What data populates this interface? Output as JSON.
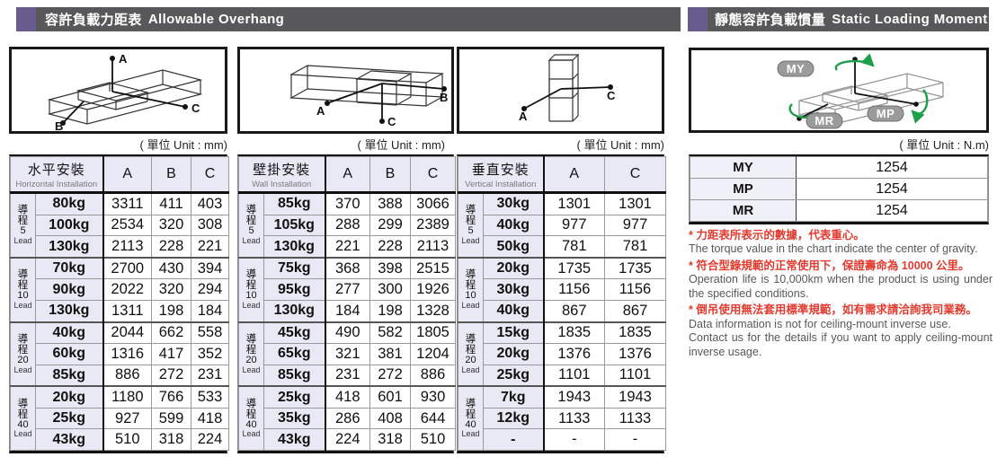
{
  "headers": {
    "left": {
      "zh": "容許負載力距表",
      "en": "Allowable Overhang"
    },
    "right": {
      "zh": "靜態容許負載慣量",
      "en": "Static Loading Moment"
    }
  },
  "units": {
    "mm": "( 單位 Unit : mm)",
    "nm": "( 單位 Unit : N.m)"
  },
  "labels": {
    "lead_char_1": "導",
    "lead_char_2": "程",
    "lead_en": "Lead"
  },
  "diagrams": {
    "horizontal": {
      "points": {
        "a": "A",
        "b": "B",
        "c": "C"
      }
    },
    "wall": {
      "points": {
        "a": "A",
        "b": "B",
        "c": "C"
      }
    },
    "vertical": {
      "points": {
        "a": "A",
        "c": "C"
      }
    },
    "moment": {
      "badges": {
        "my": "MY",
        "mp": "MP",
        "mr": "MR"
      }
    }
  },
  "tables": [
    {
      "title_zh": "水平安裝",
      "title_en": "Horizontal Installation",
      "columns": [
        "A",
        "B",
        "C"
      ],
      "groups": [
        {
          "lead": "5",
          "rows": [
            [
              "80kg",
              "3311",
              "411",
              "403"
            ],
            [
              "100kg",
              "2534",
              "320",
              "308"
            ],
            [
              "130kg",
              "2113",
              "228",
              "221"
            ]
          ]
        },
        {
          "lead": "10",
          "rows": [
            [
              "70kg",
              "2700",
              "430",
              "394"
            ],
            [
              "90kg",
              "2022",
              "320",
              "294"
            ],
            [
              "130kg",
              "1311",
              "198",
              "184"
            ]
          ]
        },
        {
          "lead": "20",
          "rows": [
            [
              "40kg",
              "2044",
              "662",
              "558"
            ],
            [
              "60kg",
              "1316",
              "417",
              "352"
            ],
            [
              "85kg",
              "886",
              "272",
              "231"
            ]
          ]
        },
        {
          "lead": "40",
          "rows": [
            [
              "20kg",
              "1180",
              "766",
              "533"
            ],
            [
              "25kg",
              "927",
              "599",
              "418"
            ],
            [
              "43kg",
              "510",
              "318",
              "224"
            ]
          ]
        }
      ]
    },
    {
      "title_zh": "壁掛安裝",
      "title_en": "Wall Installation",
      "columns": [
        "A",
        "B",
        "C"
      ],
      "groups": [
        {
          "lead": "5",
          "rows": [
            [
              "85kg",
              "370",
              "388",
              "3066"
            ],
            [
              "105kg",
              "288",
              "299",
              "2389"
            ],
            [
              "130kg",
              "221",
              "228",
              "2113"
            ]
          ]
        },
        {
          "lead": "10",
          "rows": [
            [
              "75kg",
              "368",
              "398",
              "2515"
            ],
            [
              "95kg",
              "277",
              "300",
              "1926"
            ],
            [
              "130kg",
              "184",
              "198",
              "1328"
            ]
          ]
        },
        {
          "lead": "20",
          "rows": [
            [
              "45kg",
              "490",
              "582",
              "1805"
            ],
            [
              "65kg",
              "321",
              "381",
              "1204"
            ],
            [
              "85kg",
              "231",
              "272",
              "886"
            ]
          ]
        },
        {
          "lead": "40",
          "rows": [
            [
              "25kg",
              "418",
              "601",
              "930"
            ],
            [
              "35kg",
              "286",
              "408",
              "644"
            ],
            [
              "43kg",
              "224",
              "318",
              "510"
            ]
          ]
        }
      ]
    },
    {
      "title_zh": "垂直安裝",
      "title_en": "Vertical Installation",
      "columns": [
        "A",
        "C"
      ],
      "groups": [
        {
          "lead": "5",
          "rows": [
            [
              "30kg",
              "1301",
              "1301"
            ],
            [
              "40kg",
              "977",
              "977"
            ],
            [
              "50kg",
              "781",
              "781"
            ]
          ]
        },
        {
          "lead": "10",
          "rows": [
            [
              "20kg",
              "1735",
              "1735"
            ],
            [
              "30kg",
              "1156",
              "1156"
            ],
            [
              "40kg",
              "867",
              "867"
            ]
          ]
        },
        {
          "lead": "20",
          "rows": [
            [
              "15kg",
              "1835",
              "1835"
            ],
            [
              "20kg",
              "1376",
              "1376"
            ],
            [
              "25kg",
              "1101",
              "1101"
            ]
          ]
        },
        {
          "lead": "40",
          "rows": [
            [
              "7kg",
              "1943",
              "1943"
            ],
            [
              "12kg",
              "1133",
              "1133"
            ],
            [
              "-",
              "-",
              "-"
            ]
          ]
        }
      ]
    }
  ],
  "moment_table": {
    "rows": [
      {
        "label": "MY",
        "value": "1254"
      },
      {
        "label": "MP",
        "value": "1254"
      },
      {
        "label": "MR",
        "value": "1254"
      }
    ]
  },
  "notes": [
    {
      "type": "zh",
      "text": "* 力距表所表示的數據，代表重心。"
    },
    {
      "type": "en",
      "text": "The torque value in the chart indicate the center of gravity."
    },
    {
      "type": "zh",
      "text": "* 符合型錄規範的正常使用下，保證壽命為 10000 公里。"
    },
    {
      "type": "en",
      "text": "Operation life is 10,000km when the product is using under the specified conditions."
    },
    {
      "type": "zh",
      "text": "* 倒吊使用無法套用標準規範，如有需求請洽詢我司業務。"
    },
    {
      "type": "en",
      "text": "Data information is not for ceiling-mount inverse use."
    },
    {
      "type": "en",
      "text": "Contact us for the details if you want to apply ceiling-mount inverse usage."
    }
  ],
  "colors": {
    "header_bar": "#58585a",
    "accent_purple": "#6a5b8e",
    "table_header_bg": "#e9e9f5",
    "note_red": "#e23a2e",
    "moment_green": "#1d9e48"
  }
}
